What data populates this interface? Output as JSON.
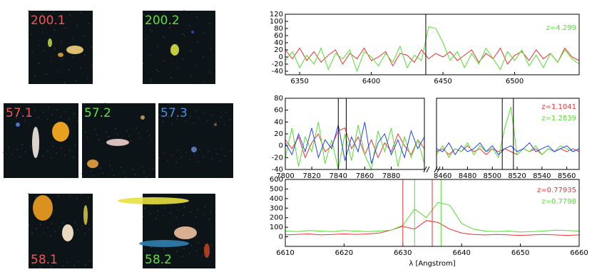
{
  "stamps": [
    {
      "label": "200.1",
      "color": "#e85a5a"
    },
    {
      "label": "200.2",
      "color": "#66dd44"
    },
    {
      "label": "57.1",
      "color": "#e85a5a"
    },
    {
      "label": "57.2",
      "color": "#66dd44"
    },
    {
      "label": "57.3",
      "color": "#4a90e0"
    },
    {
      "label": "58.1",
      "color": "#e85a5a"
    },
    {
      "label": "58.2",
      "color": "#66dd44"
    }
  ],
  "chart_data": [
    {
      "type": "line",
      "x": [
        6340,
        6345,
        6350,
        6355,
        6360,
        6365,
        6370,
        6375,
        6380,
        6385,
        6390,
        6395,
        6400,
        6405,
        6410,
        6415,
        6420,
        6425,
        6430,
        6435,
        6440,
        6445,
        6450,
        6455,
        6460,
        6465,
        6470,
        6475,
        6480,
        6485,
        6490,
        6495,
        6500,
        6505,
        6510,
        6515,
        6520,
        6525,
        6530,
        6535,
        6540,
        6545
      ],
      "series": [
        {
          "color": "#ee3333",
          "values": [
            20,
            -5,
            25,
            -10,
            15,
            -15,
            5,
            20,
            -20,
            10,
            -5,
            25,
            -10,
            0,
            15,
            -25,
            10,
            5,
            -15,
            20,
            -5,
            10,
            0,
            15,
            -10,
            5,
            20,
            -15,
            10,
            -5,
            25,
            -20,
            5,
            15,
            -10,
            20,
            -5,
            10,
            -15,
            25,
            0,
            -10
          ]
        },
        {
          "color": "#55dd33",
          "values": [
            -10,
            15,
            -30,
            5,
            -20,
            25,
            -35,
            10,
            -5,
            20,
            -40,
            15,
            0,
            -25,
            10,
            -15,
            30,
            -30,
            5,
            -10,
            85,
            80,
            40,
            -10,
            15,
            -30,
            10,
            -20,
            25,
            -5,
            -35,
            15,
            -10,
            20,
            -25,
            5,
            -30,
            10,
            -15,
            20,
            -5,
            -20
          ]
        }
      ],
      "vlines": [
        {
          "x": 6438,
          "color": "#000000"
        }
      ],
      "annotations": [
        {
          "text": "z=4.299",
          "color": "#55dd33"
        }
      ],
      "xlim": [
        6340,
        6545
      ],
      "xticks": [
        6350,
        6400,
        6450,
        6500
      ],
      "ylim": [
        -50,
        120
      ],
      "yticks": [
        -40,
        -20,
        0,
        20,
        40,
        60,
        80,
        100,
        120
      ]
    },
    {
      "type": "line",
      "x": [
        7800,
        7805,
        7810,
        7815,
        7820,
        7825,
        7830,
        7835,
        7840,
        7845,
        7850,
        7855,
        7860,
        7865,
        7870,
        7875,
        7880,
        7885,
        7890,
        7895,
        7900,
        7905
      ],
      "series": [
        {
          "color": "#ee3333",
          "values": [
            10,
            -5,
            15,
            -20,
            5,
            20,
            -10,
            0,
            25,
            30,
            -5,
            15,
            -15,
            10,
            -20,
            5,
            -10,
            20,
            0,
            -15,
            10,
            -5
          ]
        },
        {
          "color": "#55dd33",
          "values": [
            -20,
            30,
            -35,
            15,
            -10,
            40,
            -30,
            10,
            -40,
            20,
            -25,
            35,
            -15,
            -40,
            25,
            -10,
            30,
            -35,
            15,
            -20,
            10,
            -30
          ]
        },
        {
          "color": "#2244ee",
          "values": [
            5,
            -15,
            20,
            -10,
            30,
            -20,
            10,
            -5,
            35,
            -25,
            15,
            -10,
            40,
            -30,
            5,
            20,
            -15,
            10,
            -20,
            25,
            -5,
            15
          ]
        }
      ],
      "vlines": [
        {
          "x": 7840,
          "color": "#000000"
        },
        {
          "x": 7846,
          "color": "#000000"
        }
      ],
      "xlim": [
        7800,
        7905
      ],
      "xticks": [
        7800,
        7820,
        7840,
        7860,
        7880
      ],
      "ylim": [
        -40,
        80
      ],
      "yticks": [
        -40,
        -20,
        0,
        20,
        40,
        60,
        80
      ]
    },
    {
      "type": "line",
      "x": [
        8455,
        8460,
        8465,
        8470,
        8475,
        8480,
        8485,
        8490,
        8495,
        8500,
        8505,
        8510,
        8515,
        8520,
        8525,
        8530,
        8535,
        8540,
        8545,
        8550,
        8555,
        8560,
        8565,
        8570
      ],
      "series": [
        {
          "color": "#ee3333",
          "values": [
            -10,
            -5,
            -15,
            -5,
            -10,
            0,
            -10,
            -5,
            -15,
            -5,
            -10,
            -5,
            -10,
            -15,
            -5,
            -10,
            -5,
            -15,
            -5,
            -10,
            -5,
            -10,
            -5,
            -10
          ]
        },
        {
          "color": "#55dd33",
          "values": [
            -15,
            0,
            -20,
            -5,
            -10,
            5,
            -15,
            0,
            -10,
            -5,
            -20,
            30,
            65,
            -15,
            -5,
            -10,
            0,
            -15,
            -5,
            -10,
            0,
            -5,
            -10,
            -5
          ]
        },
        {
          "color": "#2244ee",
          "values": [
            -5,
            -10,
            5,
            -15,
            0,
            -10,
            -5,
            5,
            -10,
            0,
            -15,
            -5,
            0,
            -10,
            -5,
            5,
            -10,
            -5,
            0,
            -10,
            -5,
            0,
            -10,
            -5
          ]
        }
      ],
      "vlines": [
        {
          "x": 8508,
          "color": "#000000"
        },
        {
          "x": 8517,
          "color": "#000000"
        }
      ],
      "annotations": [
        {
          "text": "z=1.1041",
          "color": "#ee3333"
        },
        {
          "text": "z=1.2839",
          "color": "#55dd33"
        }
      ],
      "xlim": [
        8455,
        8570
      ],
      "xticks": [
        8460,
        8480,
        8500,
        8520,
        8540,
        8560
      ],
      "ylim": [
        -40,
        80
      ]
    },
    {
      "type": "line",
      "x": [
        6610,
        6612,
        6614,
        6616,
        6618,
        6620,
        6622,
        6624,
        6626,
        6628,
        6630,
        6632,
        6634,
        6636,
        6638,
        6640,
        6642,
        6644,
        6646,
        6648,
        6650,
        6652,
        6654,
        6656,
        6658,
        6660
      ],
      "series": [
        {
          "color": "#ee3333",
          "values": [
            20,
            25,
            30,
            20,
            25,
            30,
            25,
            30,
            40,
            70,
            110,
            80,
            170,
            150,
            80,
            40,
            25,
            20,
            25,
            20,
            15,
            20,
            25,
            20,
            15,
            20
          ]
        },
        {
          "color": "#55dd33",
          "values": [
            60,
            55,
            65,
            60,
            55,
            65,
            60,
            55,
            60,
            70,
            120,
            290,
            200,
            360,
            330,
            140,
            80,
            60,
            55,
            60,
            50,
            55,
            60,
            70,
            65,
            60
          ]
        }
      ],
      "vlines": [
        {
          "x": 6630,
          "color": "#ee3333"
        },
        {
          "x": 6635,
          "color": "#ee3333"
        },
        {
          "x": 6632,
          "color": "#55dd33"
        },
        {
          "x": 6636.5,
          "color": "#55dd33"
        }
      ],
      "annotations": [
        {
          "text": "z=0.77935",
          "color": "#ee3333"
        },
        {
          "text": "z=0.7798",
          "color": "#55dd33"
        }
      ],
      "xlabel": "λ [Angstrom]",
      "xlim": [
        6610,
        6660
      ],
      "xticks": [
        6610,
        6620,
        6630,
        6640,
        6650,
        6660
      ],
      "ylim": [
        -100,
        600
      ],
      "yticks": [
        0,
        100,
        200,
        300,
        400,
        500,
        600
      ]
    }
  ]
}
